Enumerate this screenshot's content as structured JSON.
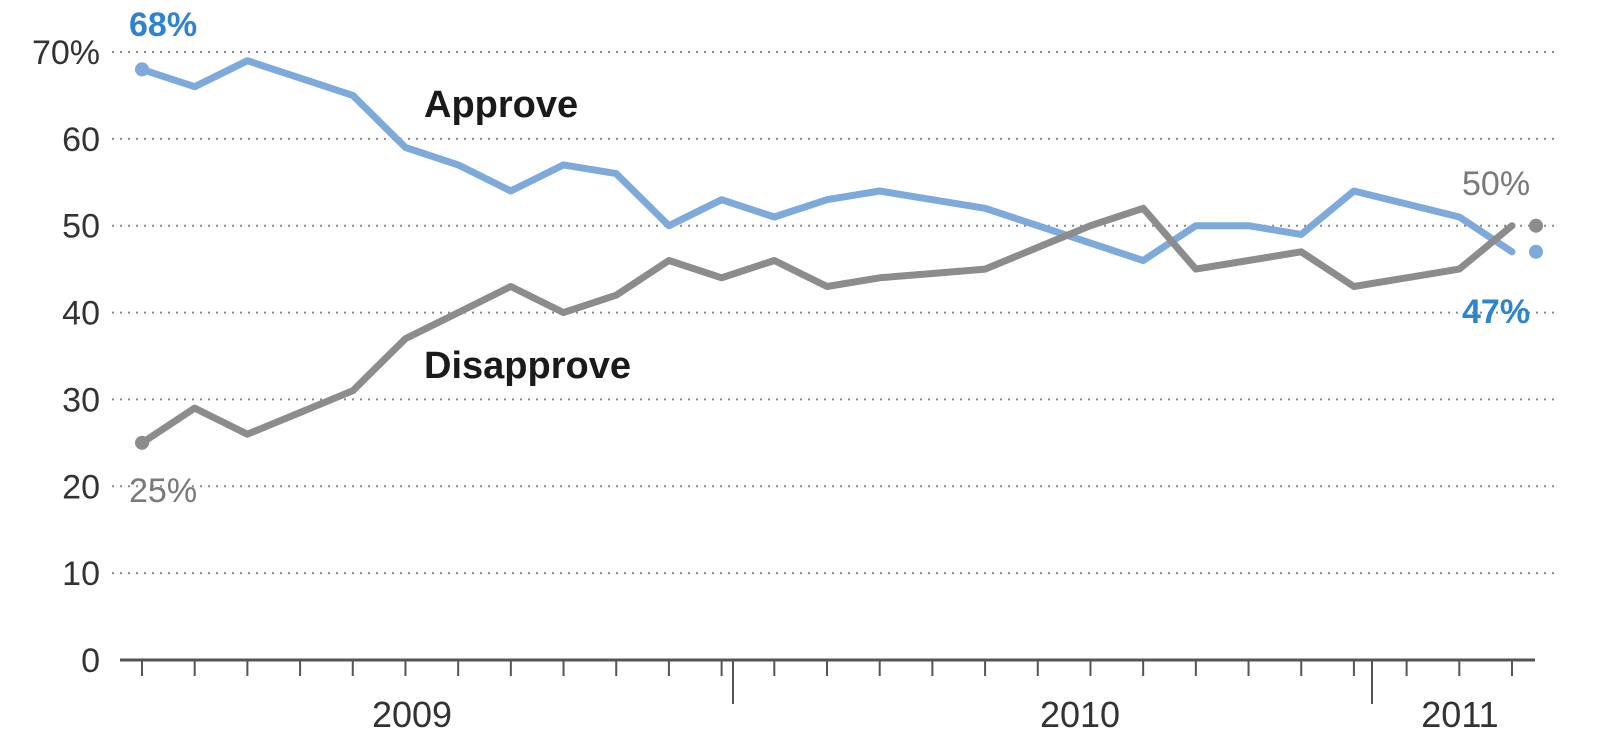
{
  "chart_data": {
    "type": "line",
    "title": "",
    "xlabel": "",
    "ylabel": "",
    "ylim": [
      0,
      70
    ],
    "y_ticks": [
      {
        "value": 0,
        "label": "0"
      },
      {
        "value": 10,
        "label": "10"
      },
      {
        "value": 20,
        "label": "20"
      },
      {
        "value": 30,
        "label": "30"
      },
      {
        "value": 40,
        "label": "40"
      },
      {
        "value": 50,
        "label": "50"
      },
      {
        "value": 60,
        "label": "60"
      },
      {
        "value": 70,
        "label": "70%"
      }
    ],
    "x_labels": [
      "2009",
      "2010",
      "2011"
    ],
    "grid": true,
    "series": [
      {
        "name": "Approve",
        "color": "#7ea9db",
        "start_label": "68%",
        "end_label": "47%",
        "values": [
          68,
          66,
          69,
          67,
          65,
          59,
          57,
          54,
          57,
          56,
          50,
          53,
          51,
          53,
          54,
          53,
          52,
          50,
          48,
          46,
          50,
          50,
          49,
          54,
          52.5,
          51,
          47
        ]
      },
      {
        "name": "Disapprove",
        "color": "#8c8c8c",
        "start_label": "25%",
        "end_label": "50%",
        "values": [
          25,
          29,
          26,
          28.5,
          31,
          37,
          40,
          43,
          40,
          42,
          46,
          44,
          46,
          43,
          44,
          44.5,
          45,
          47.5,
          50,
          52,
          45,
          46,
          47,
          43,
          44,
          45,
          50
        ]
      }
    ]
  }
}
